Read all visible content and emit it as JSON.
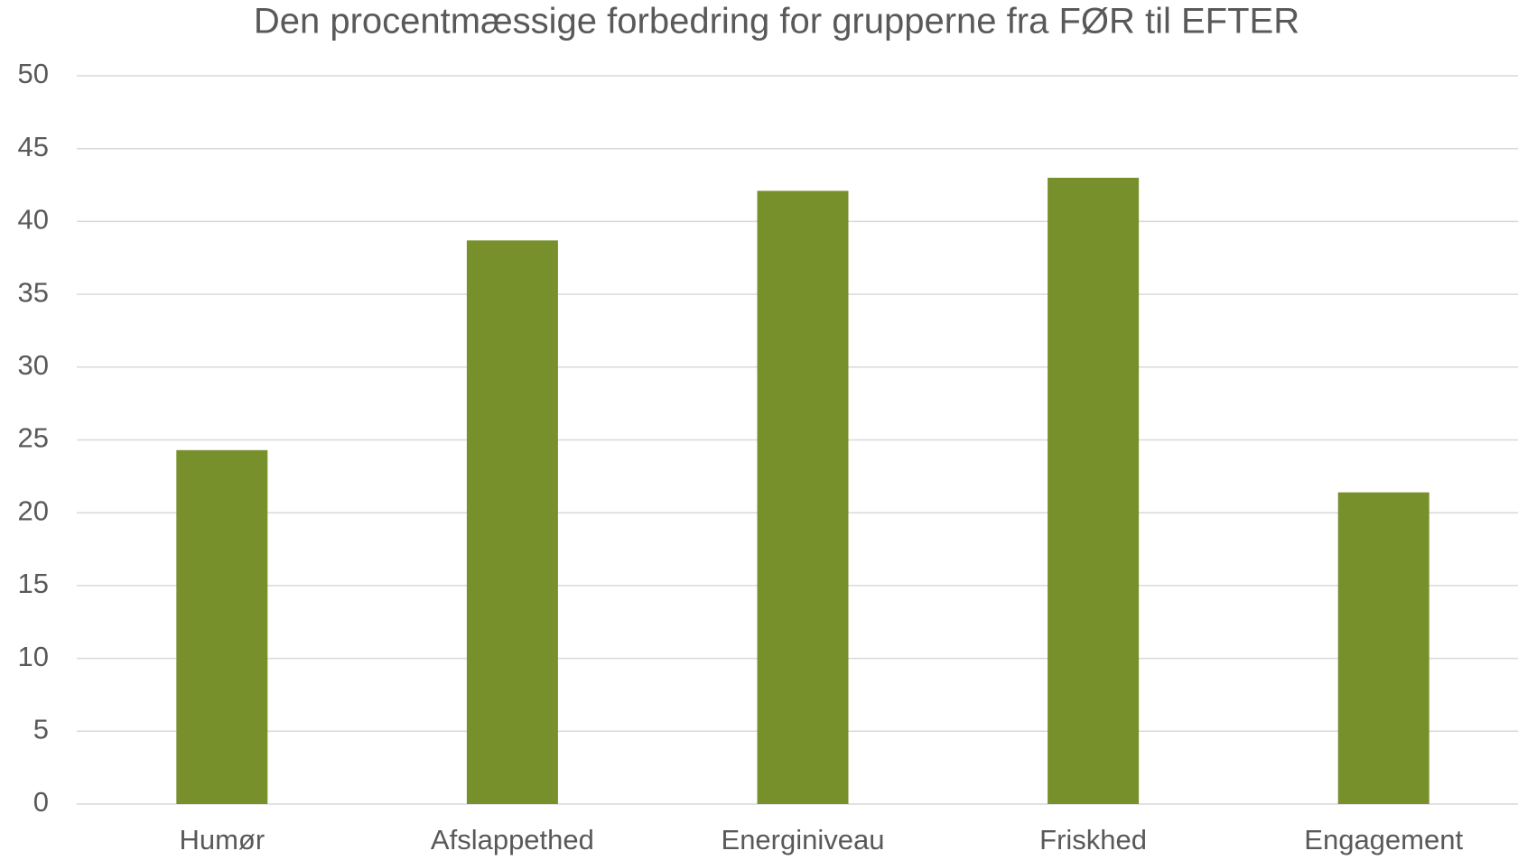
{
  "chart_data": {
    "type": "bar",
    "title": "Den procentmæssige forbedring for grupperne fra FØR til EFTER",
    "categories": [
      "Humør",
      "Afslappethed",
      "Energiniveau",
      "Friskhed",
      "Engagement"
    ],
    "values": [
      24.3,
      38.7,
      42.1,
      43.0,
      21.4
    ],
    "color": "#78902c",
    "ylim": [
      0,
      50
    ],
    "yticks": [
      0,
      5,
      10,
      15,
      20,
      25,
      30,
      35,
      40,
      45,
      50
    ],
    "grid": true
  }
}
